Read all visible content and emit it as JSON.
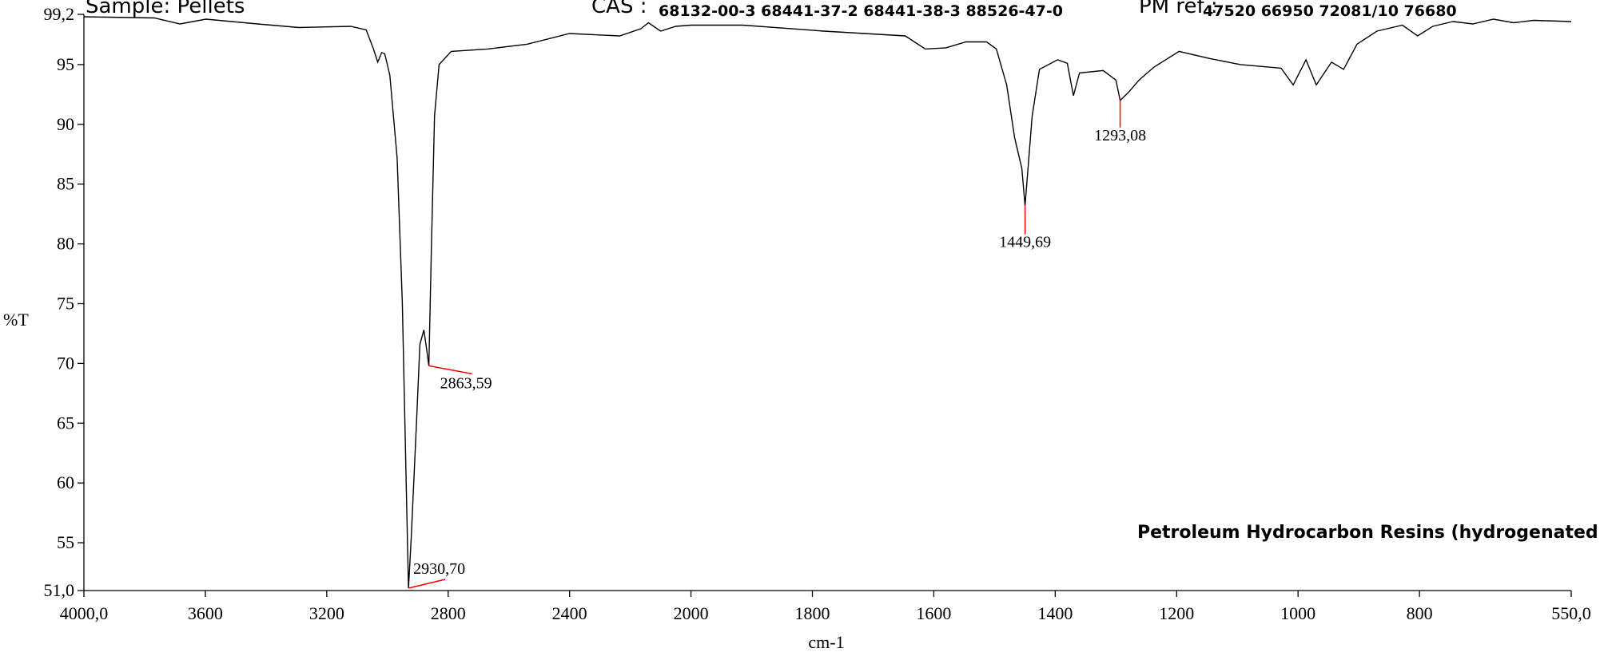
{
  "chart_data": {
    "type": "line",
    "header": {
      "sample": "Sample: Pellets",
      "cas_label": "CAS :",
      "cas": "68132-00-3 68441-37-2 68441-38-3 88526-47-0",
      "pm_label": "PM ref :",
      "pm": "47520 66950 72081/10 76680"
    },
    "compound": "Petroleum Hydrocarbon Resins (hydrogenated",
    "xlabel": "cm-1",
    "ylabel": "%T",
    "color": "#000000",
    "peak_color": "#ff0000",
    "xlim": [
      4000,
      550
    ],
    "xbreak": 2000,
    "ylim": [
      51.0,
      99.2
    ],
    "xticks": [
      {
        "value": 4000,
        "label": "4000,0"
      },
      3600,
      3200,
      2800,
      2400,
      2000,
      1800,
      1600,
      1400,
      1200,
      1000,
      800,
      {
        "value": 550,
        "label": "550,0"
      }
    ],
    "yticks": [
      {
        "value": 51.0,
        "label": "51,0"
      },
      55,
      60,
      65,
      70,
      75,
      80,
      85,
      90,
      95,
      {
        "value": 99.2,
        "label": "99,2"
      }
    ],
    "x": [
      4000,
      3768,
      3683,
      3598,
      3428,
      3291,
      3121,
      3070,
      3046,
      3032,
      3019,
      3009,
      2992,
      2968,
      2951,
      2940,
      2930.7,
      2922,
      2905,
      2893,
      2880,
      2870,
      2863.59,
      2855,
      2845,
      2830,
      2790,
      2670,
      2540,
      2400,
      2235,
      2165,
      2140,
      2100,
      2050,
      2000,
      1915,
      1781,
      1647,
      1614,
      1580,
      1547,
      1513,
      1497,
      1480,
      1467,
      1455,
      1449.69,
      1438,
      1426,
      1396,
      1380,
      1370,
      1360,
      1321,
      1300,
      1293.08,
      1279,
      1262,
      1237,
      1196,
      1145,
      1095,
      1028,
      1008,
      987,
      970,
      945,
      925,
      903,
      870,
      828,
      803,
      778,
      745,
      712,
      678,
      645,
      612,
      550
    ],
    "values": [
      99.0,
      98.9,
      98.4,
      98.8,
      98.4,
      98.1,
      98.2,
      97.9,
      96.3,
      95.2,
      96.0,
      95.9,
      94.1,
      87.2,
      75.1,
      62.0,
      51.2,
      55.2,
      64.7,
      71.6,
      72.8,
      71.0,
      69.8,
      80.0,
      90.7,
      95.0,
      96.1,
      96.3,
      96.7,
      97.6,
      97.4,
      98.0,
      98.5,
      97.8,
      98.2,
      98.3,
      98.3,
      97.8,
      97.4,
      96.3,
      96.4,
      96.9,
      96.9,
      96.3,
      93.3,
      88.9,
      86.3,
      83.2,
      90.7,
      94.6,
      95.4,
      95.1,
      92.4,
      94.3,
      94.5,
      93.7,
      92.0,
      92.7,
      93.7,
      94.8,
      96.1,
      95.5,
      95.0,
      94.7,
      93.3,
      95.4,
      93.3,
      95.2,
      94.6,
      96.7,
      97.8,
      98.3,
      97.4,
      98.2,
      98.6,
      98.4,
      98.8,
      98.5,
      98.7,
      98.6
    ],
    "peaks": [
      {
        "x": {
          "value": 2930.7,
          "label": "2930,70"
        },
        "y": 51.2
      },
      {
        "x": {
          "value": 2863.59,
          "label": "2863,59"
        },
        "y": 69.8
      },
      {
        "x": {
          "value": 1449.69,
          "label": "1449,69"
        },
        "y": 83.2
      },
      {
        "x": {
          "value": 1293.08,
          "label": "1293,08"
        },
        "y": 92.0
      }
    ]
  }
}
